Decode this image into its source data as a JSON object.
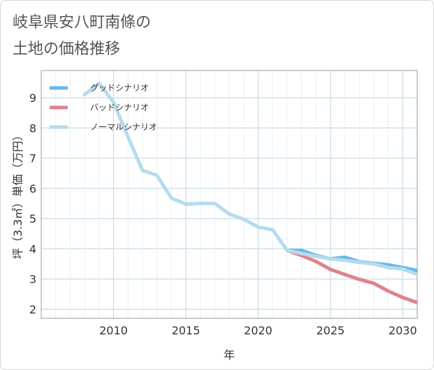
{
  "title": "岐阜県安八町南條の\n土地の価格推移",
  "chart_data": {
    "type": "line",
    "xlabel": "年",
    "ylabel": "坪（3.3㎡）単価（万円）",
    "xlim": [
      2005,
      2031
    ],
    "ylim": [
      1.7,
      9.9
    ],
    "x_ticks": [
      2010,
      2015,
      2020,
      2025,
      2030
    ],
    "y_ticks": [
      2,
      3,
      4,
      5,
      6,
      7,
      8,
      9
    ],
    "grid": true,
    "legend_position": "top-left",
    "series": [
      {
        "name": "グッドシナリオ",
        "color": "#6bb6ea",
        "x": [
          2022,
          2023,
          2024,
          2025,
          2026,
          2027,
          2028,
          2029,
          2030,
          2031
        ],
        "y": [
          3.95,
          3.95,
          3.78,
          3.67,
          3.72,
          3.57,
          3.52,
          3.47,
          3.38,
          3.28
        ]
      },
      {
        "name": "バッドシナリオ",
        "color": "#e0828a",
        "x": [
          2022,
          2023,
          2024,
          2025,
          2026,
          2027,
          2028,
          2029,
          2030,
          2031
        ],
        "y": [
          3.95,
          3.78,
          3.58,
          3.32,
          3.15,
          2.99,
          2.86,
          2.6,
          2.39,
          2.22
        ]
      },
      {
        "name": "ノーマルシナリオ",
        "color": "#b5dcee",
        "x": [
          2008,
          2009,
          2010,
          2011,
          2012,
          2013,
          2014,
          2015,
          2016,
          2017,
          2018,
          2019,
          2020,
          2021,
          2022,
          2023,
          2024,
          2025,
          2026,
          2027,
          2028,
          2029,
          2030,
          2031
        ],
        "y": [
          9.1,
          9.48,
          8.85,
          7.7,
          6.6,
          6.43,
          5.68,
          5.48,
          5.5,
          5.5,
          5.15,
          4.98,
          4.72,
          4.63,
          3.95,
          3.85,
          3.75,
          3.67,
          3.62,
          3.55,
          3.5,
          3.38,
          3.33,
          3.15
        ]
      }
    ]
  }
}
